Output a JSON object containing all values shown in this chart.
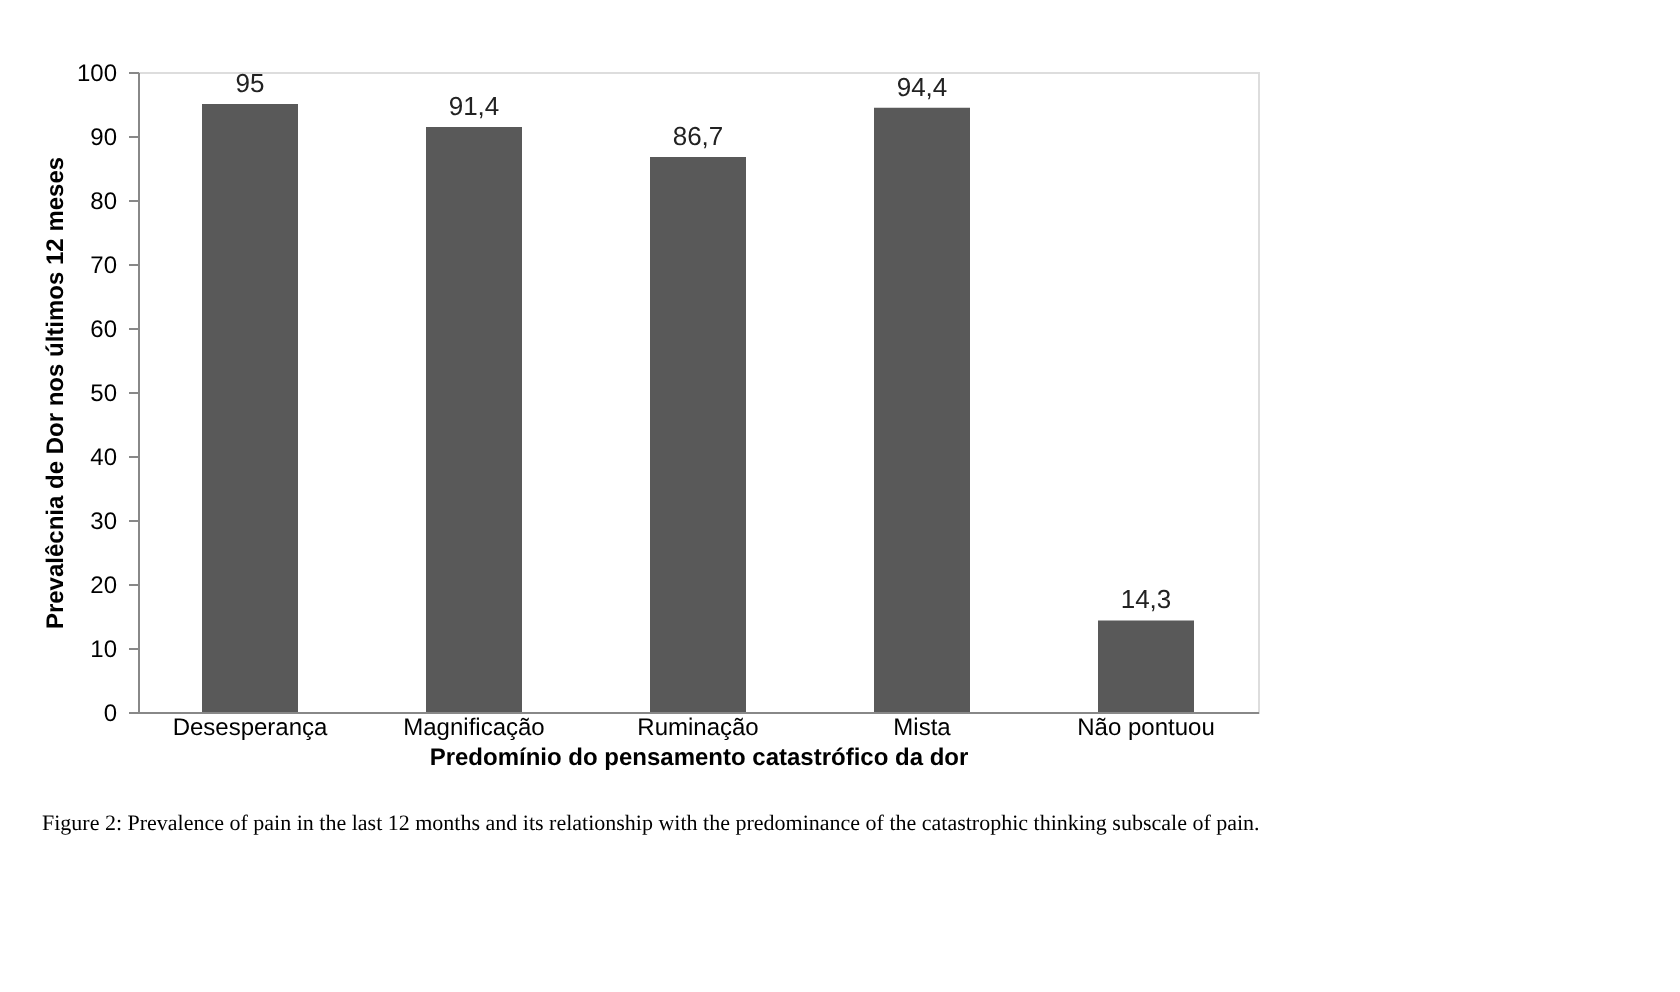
{
  "chart_data": {
    "type": "bar",
    "xlabel": "Predomínio do pensamento catastrófico da dor",
    "ylabel": "Prevalêcnia de Dor nos últimos 12 meses",
    "categories": [
      "Desesperança",
      "Magnificação",
      "Ruminação",
      "Mista",
      "Não pontuou"
    ],
    "values": [
      95,
      91.4,
      86.7,
      94.4,
      14.3
    ],
    "value_labels": [
      "95",
      "91,4",
      "86,7",
      "94,4",
      "14,3"
    ],
    "color": "#595959",
    "ylim": [
      0,
      100
    ],
    "yticks": [
      0,
      10,
      20,
      30,
      40,
      50,
      60,
      70,
      80,
      90,
      100
    ],
    "grid": false,
    "annotations": [
      "Figure 2: Prevalence of pain in the last 12 months and its relationship with the predominance of the catastrophic thinking subscale of pain."
    ]
  }
}
